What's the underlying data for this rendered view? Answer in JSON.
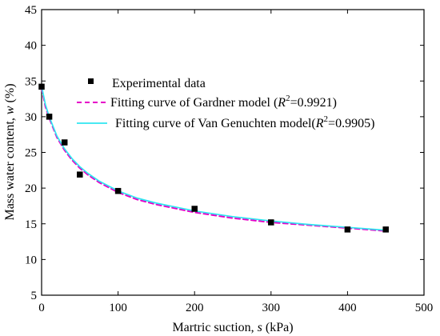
{
  "chart_data": {
    "type": "scatter",
    "title": "",
    "xlabel": {
      "main": "Martric suction, ",
      "var": "s",
      "unit": " (kPa)"
    },
    "ylabel": {
      "main": "Mass water content, ",
      "var": "w",
      "unit": " (%)"
    },
    "xlim": [
      0,
      500
    ],
    "ylim": [
      5,
      45
    ],
    "xticks": [
      0,
      100,
      200,
      300,
      400,
      500
    ],
    "yticks": [
      5,
      10,
      15,
      20,
      25,
      30,
      35,
      40,
      45
    ],
    "grid": false,
    "legend_position": "upper-center",
    "series": [
      {
        "name": "Experimental data",
        "kind": "scatter",
        "marker": "square",
        "color": "#000000",
        "x": [
          0,
          10,
          30,
          50,
          100,
          200,
          300,
          400,
          450
        ],
        "y": [
          34.2,
          30.0,
          26.4,
          21.9,
          19.6,
          17.1,
          15.2,
          14.2,
          14.2
        ]
      },
      {
        "name": "Fitting curve of Gardner model",
        "name_prefix": "Fitting curve of Gardner model (",
        "r2_label": "R",
        "r2_sup": "2",
        "r2_value": "=0.9921)",
        "kind": "line",
        "style": "dashed",
        "color": "#e600c8",
        "x": [
          0,
          5,
          10,
          20,
          30,
          40,
          50,
          60,
          75,
          100,
          125,
          150,
          200,
          250,
          300,
          350,
          400,
          450
        ],
        "y": [
          34.0,
          31.4,
          29.8,
          27.1,
          25.3,
          23.9,
          22.8,
          21.9,
          20.8,
          19.4,
          18.4,
          17.7,
          16.6,
          15.8,
          15.2,
          14.8,
          14.4,
          14.0
        ]
      },
      {
        "name": "Fitting curve of  Van Genuchten model",
        "name_prefix": "Fitting curve of  Van Genuchten model(",
        "r2_label": "R",
        "r2_sup": "2",
        "r2_value": "=0.9905)",
        "kind": "line",
        "style": "solid",
        "color": "#2fe6f0",
        "x": [
          0,
          5,
          10,
          20,
          30,
          40,
          50,
          60,
          75,
          100,
          125,
          150,
          200,
          250,
          300,
          350,
          400,
          450
        ],
        "y": [
          34.3,
          31.7,
          30.0,
          27.3,
          25.5,
          24.1,
          23.0,
          22.1,
          21.0,
          19.6,
          18.6,
          17.9,
          16.8,
          16.0,
          15.4,
          14.9,
          14.5,
          14.1
        ]
      }
    ]
  }
}
